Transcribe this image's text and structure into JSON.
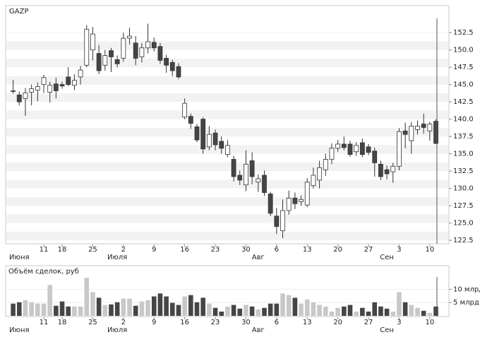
{
  "chart_data": [
    {
      "type": "candlestick",
      "title": "GAZP",
      "categories": [
        null,
        "Июня",
        null,
        null,
        null,
        "11",
        null,
        null,
        "18",
        null,
        null,
        null,
        null,
        "25",
        null,
        null,
        null,
        "Июля",
        "2",
        null,
        null,
        null,
        null,
        "9",
        null,
        null,
        null,
        null,
        "16",
        null,
        null,
        null,
        null,
        "23",
        null,
        null,
        null,
        null,
        "30",
        null,
        "Авг",
        null,
        null,
        "6",
        null,
        null,
        null,
        null,
        "13",
        null,
        null,
        null,
        null,
        "20",
        null,
        null,
        null,
        null,
        "27",
        null,
        null,
        "Сен",
        null,
        "3",
        null,
        null,
        null,
        null,
        "10",
        null
      ],
      "open": [
        144.1,
        143.5,
        143.0,
        143.9,
        144.2,
        145.0,
        143.9,
        145.1,
        145.0,
        146.1,
        144.9,
        146.1,
        147.8,
        150.0,
        149.5,
        147.8,
        149.9,
        148.6,
        148.8,
        151.7,
        151.0,
        149.0,
        150.3,
        151.1,
        150.5,
        148.8,
        148.2,
        147.6,
        140.3,
        140.4,
        138.9,
        140.0,
        136.0,
        138.0,
        136.8,
        134.9,
        134.2,
        131.9,
        130.5,
        134.0,
        130.9,
        131.9,
        129.2,
        126.0,
        123.9,
        126.8,
        128.6,
        128.1,
        127.6,
        130.4,
        131.2,
        132.7,
        134.2,
        135.8,
        136.4,
        136.4,
        135.3,
        136.6,
        136.0,
        135.4,
        133.5,
        132.7,
        132.4,
        133.2,
        138.3,
        136.9,
        138.5,
        139.3,
        138.3,
        139.7
      ],
      "high": [
        145.7,
        144.0,
        144.5,
        145.0,
        145.3,
        146.4,
        145.4,
        146.0,
        145.4,
        147.5,
        146.5,
        147.7,
        153.6,
        153.3,
        150.7,
        150.0,
        150.3,
        149.2,
        152.5,
        153.2,
        152.0,
        151.0,
        153.8,
        151.8,
        151.0,
        149.3,
        148.6,
        148.1,
        143.0,
        140.8,
        139.3,
        140.3,
        139.0,
        138.5,
        137.5,
        137.0,
        134.7,
        132.6,
        135.5,
        135.2,
        132.0,
        132.6,
        129.5,
        127.2,
        128.4,
        129.7,
        129.4,
        129.0,
        131.5,
        133.0,
        134.0,
        135.0,
        136.5,
        137.0,
        137.5,
        136.9,
        136.7,
        137.2,
        136.4,
        135.9,
        134.0,
        133.3,
        133.7,
        138.7,
        139.5,
        139.6,
        139.8,
        140.8,
        139.6,
        140.0
      ],
      "low": [
        143.7,
        142.0,
        140.5,
        142.0,
        142.6,
        143.8,
        142.4,
        143.0,
        144.4,
        144.8,
        144.2,
        145.0,
        147.5,
        148.5,
        146.5,
        147.0,
        146.8,
        147.5,
        148.3,
        150.8,
        147.8,
        148.2,
        149.5,
        149.8,
        148.0,
        146.7,
        146.2,
        145.8,
        140.0,
        138.6,
        136.7,
        135.0,
        135.5,
        135.5,
        135.0,
        134.5,
        131.0,
        130.5,
        129.6,
        130.6,
        129.5,
        128.9,
        126.0,
        123.4,
        122.8,
        126.2,
        127.0,
        127.5,
        127.3,
        130.0,
        130.0,
        131.8,
        133.5,
        135.3,
        135.5,
        134.6,
        134.7,
        134.5,
        134.8,
        131.7,
        131.2,
        131.3,
        130.8,
        132.6,
        135.8,
        135.0,
        137.8,
        137.9,
        136.9,
        136.4
      ],
      "close": [
        144.0,
        142.5,
        143.8,
        144.4,
        144.7,
        146.0,
        144.9,
        144.1,
        144.8,
        145.0,
        145.6,
        147.1,
        153.0,
        152.3,
        147.0,
        149.2,
        149.0,
        148.0,
        151.7,
        152.0,
        148.8,
        150.3,
        151.2,
        150.3,
        148.5,
        147.8,
        147.0,
        146.1,
        142.3,
        139.4,
        137.0,
        135.7,
        137.8,
        136.3,
        135.8,
        136.2,
        131.7,
        131.2,
        133.5,
        131.7,
        131.4,
        129.4,
        126.4,
        124.5,
        126.8,
        128.6,
        127.8,
        128.4,
        130.9,
        131.9,
        133.0,
        134.2,
        135.8,
        136.4,
        135.9,
        134.9,
        136.2,
        134.9,
        135.2,
        133.7,
        131.7,
        132.1,
        133.2,
        138.2,
        137.8,
        139.0,
        139.0,
        138.8,
        139.3,
        136.5
      ],
      "ylim": [
        122.0,
        156.4
      ],
      "yticks": [
        122.5,
        {
          "value": 125,
          "label": "125.0"
        },
        127.5,
        {
          "value": 130,
          "label": "130.0"
        },
        132.5,
        {
          "value": 135,
          "label": "135.0"
        },
        137.5,
        {
          "value": 140,
          "label": "140.0"
        },
        142.5,
        {
          "value": 145,
          "label": "145.0"
        },
        147.5,
        {
          "value": 150,
          "label": "150.0"
        },
        152.5
      ],
      "up_color": "#ffffff",
      "down_color": "#454545",
      "grid": true
    },
    {
      "type": "bar",
      "title": "Объём сделок, руб",
      "values": [
        4.6,
        5.1,
        5.9,
        5.1,
        4.6,
        4.6,
        11.6,
        3.8,
        5.4,
        3.5,
        3.5,
        3.5,
        14.3,
        8.9,
        6.8,
        4.1,
        4.3,
        5.1,
        6.5,
        6.5,
        3.8,
        5.4,
        5.9,
        7.3,
        8.4,
        7.3,
        4.9,
        4.1,
        7.3,
        7.8,
        5.1,
        6.8,
        4.6,
        3.0,
        1.6,
        3.5,
        4.1,
        2.7,
        4.1,
        3.5,
        2.4,
        3.0,
        4.6,
        4.6,
        8.4,
        7.8,
        6.8,
        4.6,
        6.2,
        5.1,
        4.1,
        3.5,
        1.6,
        3.0,
        3.5,
        4.1,
        1.6,
        3.0,
        1.6,
        5.1,
        3.5,
        2.7,
        1.6,
        8.9,
        5.1,
        4.1,
        3.0,
        1.9,
        1.1,
        3.5
      ],
      "ylim": [
        0,
        14.6
      ],
      "yticks": [
        {
          "value": 5,
          "label": "5 млрд"
        },
        {
          "value": 10,
          "label": "10 млрд"
        }
      ],
      "up_color": "#c8c8c8",
      "down_color": "#454545",
      "grid": true
    }
  ]
}
